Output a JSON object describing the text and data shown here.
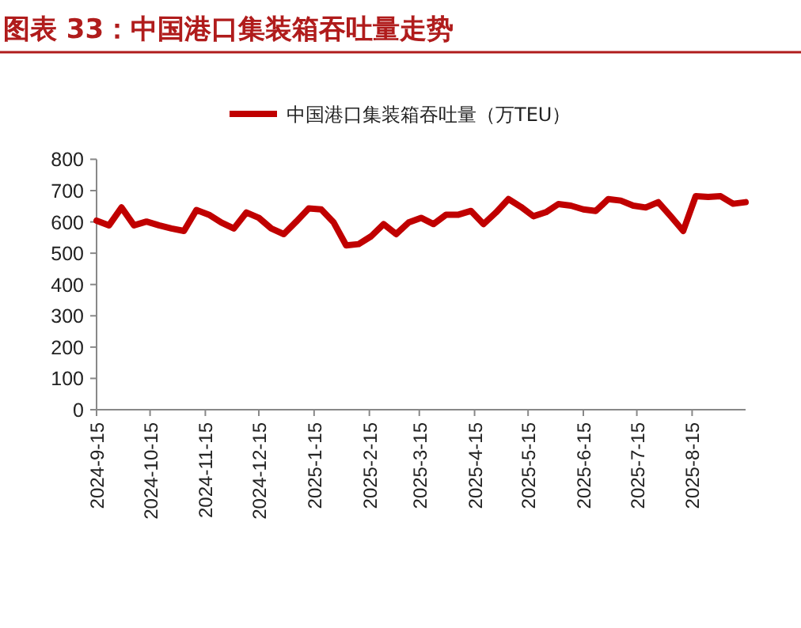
{
  "chart_data": {
    "type": "line",
    "title": "图表 33：中国港口集装箱吞吐量走势",
    "x": [
      "2024-09-15",
      "2024-09-22",
      "2024-09-29",
      "2024-10-06",
      "2024-10-13",
      "2024-10-20",
      "2024-10-27",
      "2024-11-03",
      "2024-11-10",
      "2024-11-17",
      "2024-11-24",
      "2024-12-01",
      "2024-12-08",
      "2024-12-15",
      "2024-12-22",
      "2024-12-29",
      "2025-01-05",
      "2025-01-12",
      "2025-01-19",
      "2025-01-26",
      "2025-02-02",
      "2025-02-09",
      "2025-02-16",
      "2025-02-23",
      "2025-03-02",
      "2025-03-09",
      "2025-03-16",
      "2025-03-23",
      "2025-03-30",
      "2025-04-06",
      "2025-04-13",
      "2025-04-20",
      "2025-04-27",
      "2025-05-04",
      "2025-05-11",
      "2025-05-18",
      "2025-05-25",
      "2025-06-01",
      "2025-06-08",
      "2025-06-15",
      "2025-06-22",
      "2025-06-29",
      "2025-07-06",
      "2025-07-13",
      "2025-07-20",
      "2025-07-27",
      "2025-08-03",
      "2025-08-10",
      "2025-08-17",
      "2025-08-24",
      "2025-08-31",
      "2025-09-07",
      "2025-09-14"
    ],
    "series": [
      {
        "name": "中国港口集装箱吞吐量（万TEU）",
        "color": "#c00000",
        "values": [
          604,
          589,
          646,
          589,
          601,
          589,
          579,
          571,
          638,
          623,
          598,
          579,
          630,
          613,
          579,
          561,
          601,
          643,
          640,
          598,
          525,
          529,
          554,
          593,
          561,
          598,
          613,
          593,
          623,
          623,
          635,
          593,
          630,
          673,
          648,
          618,
          631,
          657,
          652,
          640,
          635,
          673,
          668,
          652,
          646,
          663,
          618,
          571,
          682,
          680,
          682,
          658,
          663
        ]
      }
    ],
    "xlim": [
      "2024-09-15",
      "2025-09-14"
    ],
    "xticks": [
      {
        "value": "2024-09-15",
        "label": "2024-9-15"
      },
      {
        "value": "2024-10-15",
        "label": "2024-10-15"
      },
      {
        "value": "2024-11-15",
        "label": "2024-11-15"
      },
      {
        "value": "2024-12-15",
        "label": "2024-12-15"
      },
      {
        "value": "2025-01-15",
        "label": "2025-1-15"
      },
      {
        "value": "2025-02-15",
        "label": "2025-2-15"
      },
      {
        "value": "2025-03-15",
        "label": "2025-3-15"
      },
      {
        "value": "2025-04-15",
        "label": "2025-4-15"
      },
      {
        "value": "2025-05-15",
        "label": "2025-5-15"
      },
      {
        "value": "2025-06-15",
        "label": "2025-6-15"
      },
      {
        "value": "2025-07-15",
        "label": "2025-7-15"
      },
      {
        "value": "2025-08-15",
        "label": "2025-8-15"
      }
    ],
    "ylim": [
      0,
      800
    ],
    "yticks": [
      0,
      100,
      200,
      300,
      400,
      500,
      600,
      700,
      800
    ],
    "legend": "top",
    "grid": false,
    "marker": "none",
    "line_style": "solid"
  }
}
